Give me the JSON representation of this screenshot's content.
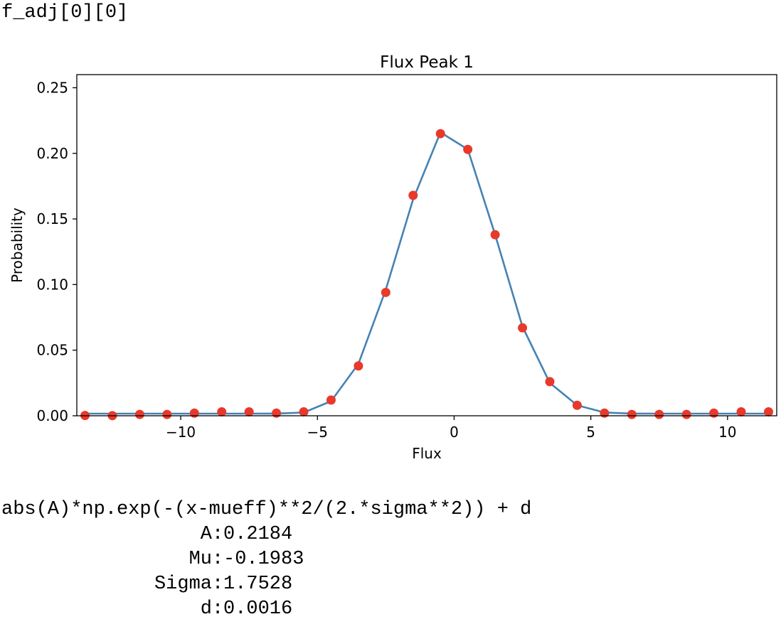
{
  "cell": {
    "label": "f_adj[0][0]"
  },
  "fit": {
    "formula": "abs(A)*np.exp(-(x-mueff)**2/(2.*sigma**2)) + d",
    "params": [
      {
        "name": "A",
        "value": "0.2184"
      },
      {
        "name": "Mu",
        "value": "-0.1983"
      },
      {
        "name": "Sigma",
        "value": "1.7528"
      },
      {
        "name": "d",
        "value": "0.0016"
      }
    ]
  },
  "chart_data": {
    "type": "line",
    "title": "Flux Peak 1",
    "xlabel": "Flux",
    "ylabel": "Probability",
    "xlim": [
      -13.8,
      11.8
    ],
    "ylim": [
      0,
      0.26
    ],
    "xticks": [
      -10,
      -5,
      0,
      5,
      10
    ],
    "xtick_labels": [
      "−10",
      "−5",
      "0",
      "5",
      "10"
    ],
    "yticks": [
      0.0,
      0.05,
      0.1,
      0.15,
      0.2,
      0.25
    ],
    "ytick_labels": [
      "0.00",
      "0.05",
      "0.10",
      "0.15",
      "0.20",
      "0.25"
    ],
    "grid": false,
    "colors": {
      "fit_line": "#4682b4",
      "points": "#e8392b",
      "axes": "#000000"
    },
    "series": [
      {
        "kind": "scatter",
        "x": [
          -13.5,
          -12.5,
          -11.5,
          -10.5,
          -9.5,
          -8.5,
          -7.5,
          -6.5,
          -5.5,
          -4.5,
          -3.5,
          -2.5,
          -1.5,
          -0.5,
          0.5,
          1.5,
          2.5,
          3.5,
          4.5,
          5.5,
          6.5,
          7.5,
          8.5,
          9.5,
          10.5,
          11.5
        ],
        "y": [
          0.0002,
          0.0001,
          0.001,
          0.001,
          0.002,
          0.003,
          0.003,
          0.002,
          0.003,
          0.012,
          0.038,
          0.094,
          0.168,
          0.215,
          0.203,
          0.138,
          0.067,
          0.026,
          0.008,
          0.002,
          0.001,
          0.001,
          0.001,
          0.002,
          0.003,
          0.003
        ]
      },
      {
        "kind": "line",
        "x": [
          -13.5,
          -12.5,
          -11.5,
          -10.5,
          -9.5,
          -8.5,
          -7.5,
          -6.5,
          -5.5,
          -4.5,
          -3.5,
          -2.5,
          -1.5,
          -0.5,
          0.5,
          1.5,
          2.5,
          3.5,
          4.5,
          5.5,
          6.5,
          7.5,
          8.5,
          9.5,
          10.5,
          11.5
        ],
        "y": [
          0.0016,
          0.0016,
          0.0016,
          0.0016,
          0.0016,
          0.0016,
          0.0016,
          0.0017,
          0.0025,
          0.0111,
          0.0396,
          0.096,
          0.165,
          0.216,
          0.203,
          0.138,
          0.068,
          0.025,
          0.008,
          0.0025,
          0.0017,
          0.0016,
          0.0016,
          0.0016,
          0.0016,
          0.0016
        ]
      }
    ]
  }
}
